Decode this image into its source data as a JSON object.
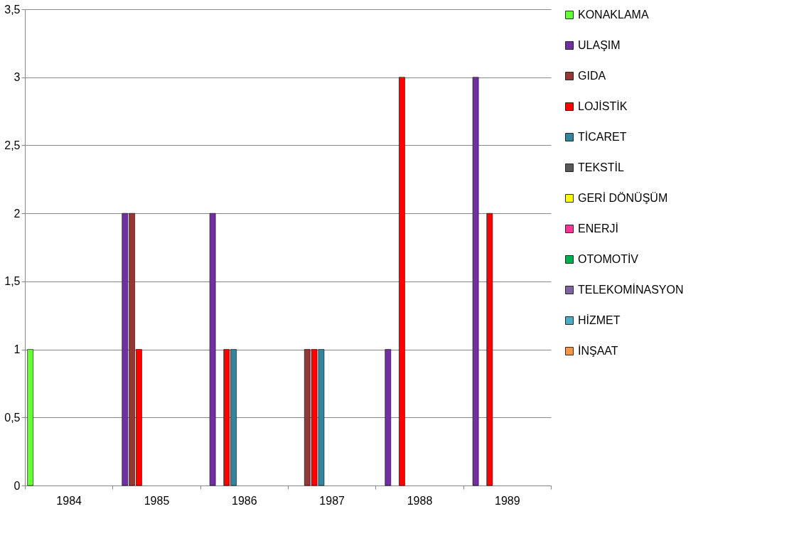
{
  "chart_data": {
    "type": "bar",
    "categories": [
      "1984",
      "1985",
      "1986",
      "1987",
      "1988",
      "1989"
    ],
    "series": [
      {
        "name": "KONAKLAMA",
        "color": "#66ff33",
        "values": [
          1,
          null,
          null,
          null,
          null,
          null
        ]
      },
      {
        "name": "ULAŞIM",
        "color": "#7030a0",
        "values": [
          null,
          2,
          2,
          null,
          1,
          3
        ]
      },
      {
        "name": "GIDA",
        "color": "#953735",
        "values": [
          null,
          2,
          null,
          1,
          null,
          null
        ]
      },
      {
        "name": "LOJİSTİK",
        "color": "#ff0000",
        "values": [
          null,
          1,
          1,
          1,
          3,
          2
        ]
      },
      {
        "name": "TİCARET",
        "color": "#31859c",
        "values": [
          null,
          null,
          1,
          1,
          null,
          null
        ]
      },
      {
        "name": "TEKSTİL",
        "color": "#595959",
        "values": [
          null,
          null,
          null,
          null,
          null,
          null
        ]
      },
      {
        "name": "GERİ DÖNÜŞÜM",
        "color": "#ffff00",
        "values": [
          null,
          null,
          null,
          null,
          null,
          null
        ]
      },
      {
        "name": "ENERJİ",
        "color": "#ff3399",
        "values": [
          null,
          null,
          null,
          null,
          null,
          null
        ]
      },
      {
        "name": "OTOMOTİV",
        "color": "#00b050",
        "values": [
          null,
          null,
          null,
          null,
          null,
          null
        ]
      },
      {
        "name": "TELEKOMİNASYON",
        "color": "#8064a2",
        "values": [
          null,
          null,
          null,
          null,
          null,
          null
        ]
      },
      {
        "name": "HİZMET",
        "color": "#4bacc6",
        "values": [
          null,
          null,
          null,
          null,
          null,
          null
        ]
      },
      {
        "name": "İNŞAAT",
        "color": "#f79646",
        "values": [
          null,
          null,
          null,
          null,
          null,
          null
        ]
      }
    ],
    "ylim": [
      0,
      3.5
    ],
    "yticks": [
      0,
      {
        "value": 0.5,
        "label": "0,5"
      },
      1,
      {
        "value": 1.5,
        "label": "1,5"
      },
      2,
      {
        "value": 2.5,
        "label": "2,5"
      },
      3,
      {
        "value": 3.5,
        "label": "3,5"
      }
    ],
    "grid": "y",
    "legend": "right"
  }
}
